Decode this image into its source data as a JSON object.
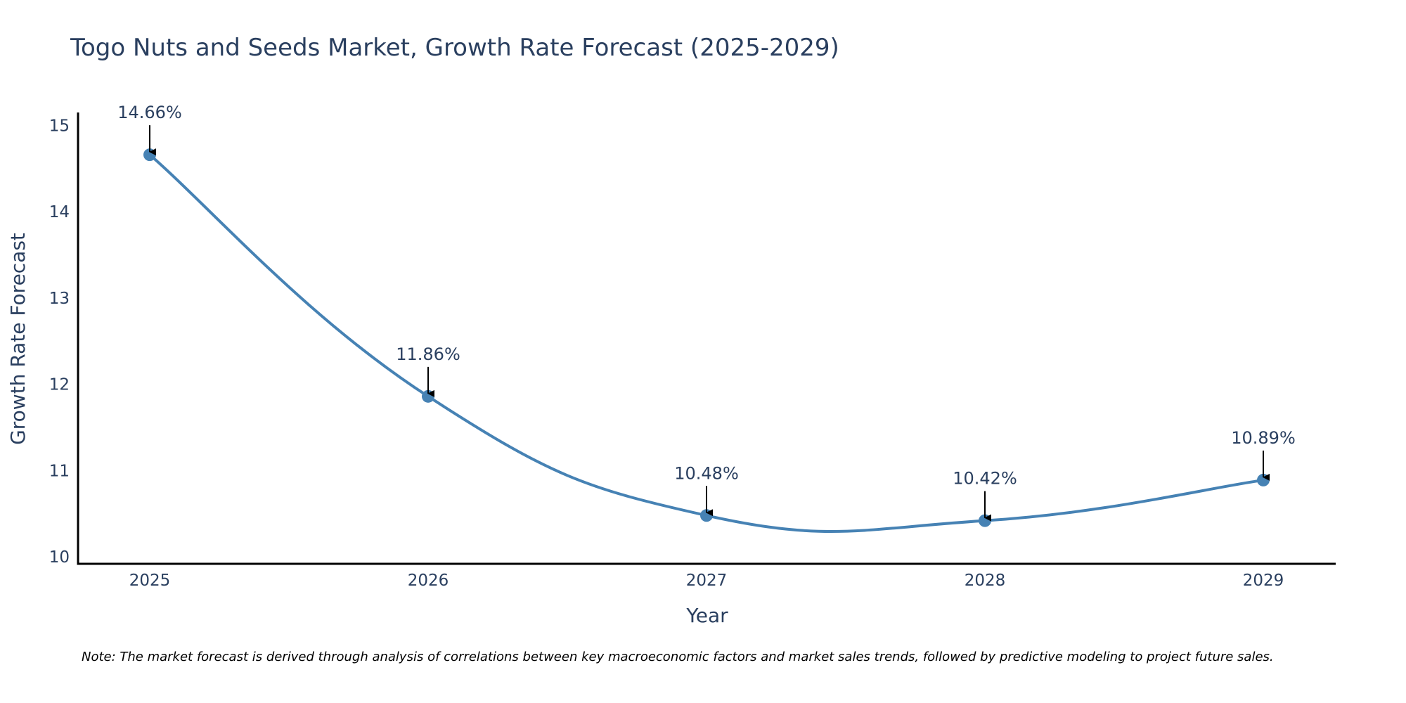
{
  "chart_data": {
    "type": "line",
    "title": "Togo Nuts and Seeds Market, Growth Rate Forecast (2025-2029)",
    "xlabel": "Year",
    "ylabel": "Growth Rate Forecast",
    "categories": [
      "2025",
      "2026",
      "2027",
      "2028",
      "2029"
    ],
    "series": [
      {
        "name": "Growth Rate Forecast",
        "values": [
          14.66,
          11.86,
          10.48,
          10.42,
          10.89
        ],
        "labels": [
          "14.66%",
          "11.86%",
          "10.48%",
          "10.42%",
          "10.89%"
        ]
      }
    ],
    "yticks": [
      10,
      11,
      12,
      13,
      14,
      15
    ],
    "ytick_labels": [
      "10",
      "11",
      "12",
      "13",
      "14",
      "15"
    ],
    "ylim": [
      9.92,
      15.15
    ],
    "grid": false,
    "note": "Note: The market forecast is derived through analysis of correlations between key macroeconomic factors and market sales trends, followed by predictive modeling to project future sales."
  },
  "colors": {
    "line": "#4682b4",
    "marker": "#4682b4",
    "axis": "#000000",
    "text": "#2a3f5f",
    "arrow": "#000000"
  }
}
